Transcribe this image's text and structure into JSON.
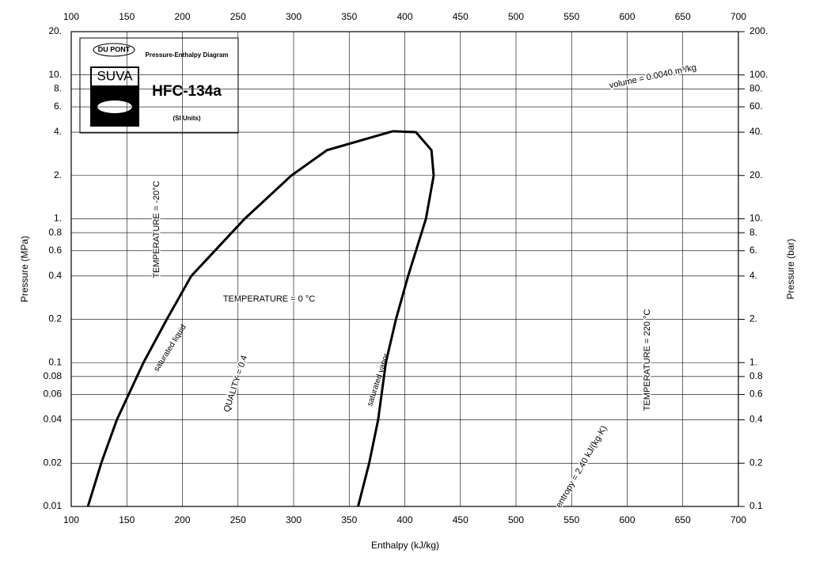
{
  "logo": {
    "brand": "DU PONT",
    "product": "SUVA",
    "diagram": "Pressure-Enthalpy Diagram",
    "refrigerant": "HFC-134a",
    "units": "(SI Units)"
  },
  "chart_data": {
    "type": "line",
    "xlabel": "Enthalpy (kJ/kg)",
    "ylabel": "Pressure (MPa)",
    "y2label": "Pressure (bar)",
    "xlim": [
      100,
      700
    ],
    "xticks": [
      100,
      150,
      200,
      250,
      300,
      350,
      400,
      450,
      500,
      550,
      600,
      650,
      700
    ],
    "ylim": [
      0.01,
      20
    ],
    "yscale": "log",
    "yticks": [
      0.01,
      0.02,
      0.04,
      0.06,
      0.08,
      0.1,
      0.2,
      0.4,
      0.6,
      0.8,
      {
        "value": 1,
        "label": "1."
      },
      {
        "value": 2,
        "label": "2."
      },
      {
        "value": 4,
        "label": "4."
      },
      {
        "value": 6,
        "label": "6."
      },
      {
        "value": 8,
        "label": "8."
      },
      {
        "value": 10,
        "label": "10."
      },
      {
        "value": 20,
        "label": "20."
      }
    ],
    "y2lim": [
      0.1,
      200
    ],
    "y2ticks": [
      0.1,
      0.2,
      0.4,
      0.6,
      0.8,
      {
        "value": 1,
        "label": "1."
      },
      {
        "value": 2,
        "label": "2."
      },
      {
        "value": 4,
        "label": "4."
      },
      {
        "value": 6,
        "label": "6."
      },
      {
        "value": 8,
        "label": "8."
      },
      {
        "value": 10,
        "label": "10."
      },
      {
        "value": 20,
        "label": "20."
      },
      {
        "value": 40,
        "label": "40."
      },
      {
        "value": 60,
        "label": "60."
      },
      {
        "value": 80,
        "label": "80."
      },
      {
        "value": 100,
        "label": "100."
      },
      {
        "value": 200,
        "label": "200."
      }
    ],
    "grid": true,
    "series": [
      {
        "name": "saturated liquid",
        "color": "#000000",
        "x": [
          115,
          127,
          141,
          165,
          186,
          208,
          256,
          298,
          330,
          389
        ],
        "values": [
          0.01,
          0.02,
          0.04,
          0.1,
          0.2,
          0.4,
          1,
          2,
          3,
          4.06
        ]
      },
      {
        "name": "saturated vapor",
        "color": "#000000",
        "x": [
          358,
          368,
          376,
          383,
          392,
          403,
          419,
          426,
          424,
          410,
          389
        ],
        "values": [
          0.01,
          0.02,
          0.04,
          0.1,
          0.2,
          0.4,
          1,
          2,
          3,
          4,
          4.06
        ]
      }
    ],
    "annotations": [
      "TEMPERATURE = 0 °C",
      "QUALITY = 0.4",
      "volume = 0.0040 m³/kg",
      "entropy = 2.40 kJ/(kg·K)",
      "TEMPERATURE = 220 °C",
      "TEMPERATURE = -20°C"
    ]
  }
}
